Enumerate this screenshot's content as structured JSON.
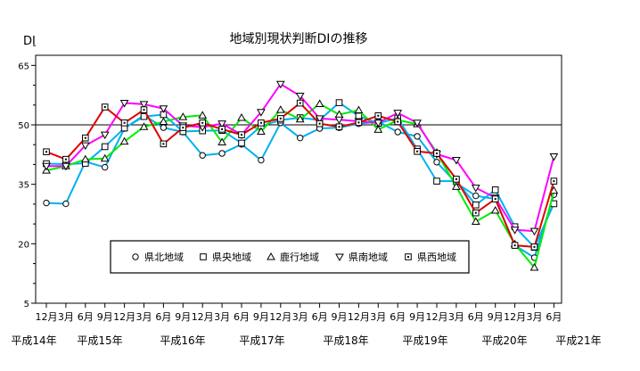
{
  "chart_data": {
    "type": "line",
    "title": "地域別現状判断DIの推移",
    "ylabel": "DI",
    "ylim": [
      5,
      73
    ],
    "yticks": [
      5,
      20,
      35,
      50,
      65
    ],
    "reference_line": 50,
    "x_month_labels": [
      "12月",
      "3月",
      "6月",
      "9月",
      "12月",
      "3月",
      "6月",
      "9月",
      "12月",
      "3月",
      "6月",
      "9月",
      "12月",
      "3月",
      "6月",
      "9月",
      "12月",
      "3月",
      "6月",
      "9月",
      "12月",
      "3月",
      "6月",
      "9月",
      "12月",
      "3月",
      "6月"
    ],
    "x_year_labels": [
      "平成14年",
      "平成15年",
      "平成16年",
      "平成17年",
      "平成18年",
      "平成19年",
      "平成20年",
      "平成21年"
    ],
    "legend_position": "bottom-center (inside plot)",
    "series": [
      {
        "name": "県北地域",
        "marker": "circle",
        "color": "#00b0f0",
        "values": [
          30.3,
          30.1,
          40.7,
          39.3,
          49.1,
          52.4,
          49.3,
          48.2,
          42.3,
          42.8,
          45.1,
          41.1,
          50.5,
          46.7,
          49.1,
          49.3,
          50.3,
          50.8,
          48.2,
          47.1,
          40.6,
          35.3,
          32.1,
          31.3,
          19.6,
          16.5,
          32.4
        ]
      },
      {
        "name": "県央地域",
        "marker": "square",
        "color": "#00b0f0",
        "values": [
          40.2,
          40.1,
          40.3,
          44.5,
          49.2,
          52.1,
          52.6,
          48.3,
          48.5,
          48.6,
          45.4,
          49.7,
          51.2,
          51.8,
          51.2,
          55.6,
          52.2,
          50.4,
          51.7,
          43.9,
          35.8,
          35.8,
          29.8,
          33.6,
          24.3,
          19.1,
          30.1
        ]
      },
      {
        "name": "鹿行地域",
        "marker": "triangle-up",
        "color": "#00ee00",
        "values": [
          38.5,
          39.6,
          41.3,
          41.5,
          45.8,
          49.5,
          50.8,
          52.0,
          52.4,
          45.6,
          51.8,
          48.3,
          53.8,
          51.4,
          55.3,
          52.6,
          53.7,
          48.8,
          51.2,
          50.2,
          43.0,
          34.4,
          25.6,
          28.4,
          19.9,
          14.0,
          33.4
        ]
      },
      {
        "name": "県南地域",
        "marker": "triangle-down",
        "color": "#ff00ff",
        "values": [
          39.6,
          39.6,
          44.8,
          47.5,
          55.5,
          55.2,
          54.1,
          49.8,
          49.4,
          50.3,
          47.5,
          53.2,
          60.3,
          57.3,
          51.6,
          51.3,
          50.9,
          50.5,
          53.0,
          50.5,
          42.6,
          41.1,
          34.1,
          31.6,
          23.5,
          23.2,
          42.0
        ]
      },
      {
        "name": "県西地域",
        "marker": "square-dot",
        "color": "#e00000",
        "values": [
          43.2,
          41.3,
          46.7,
          54.5,
          50.5,
          53.8,
          45.2,
          49.3,
          50.5,
          48.9,
          47.5,
          50.5,
          51.6,
          55.5,
          50.3,
          49.5,
          50.6,
          52.3,
          50.8,
          43.3,
          42.8,
          36.3,
          27.8,
          31.3,
          19.6,
          19.2,
          35.8
        ]
      }
    ]
  }
}
